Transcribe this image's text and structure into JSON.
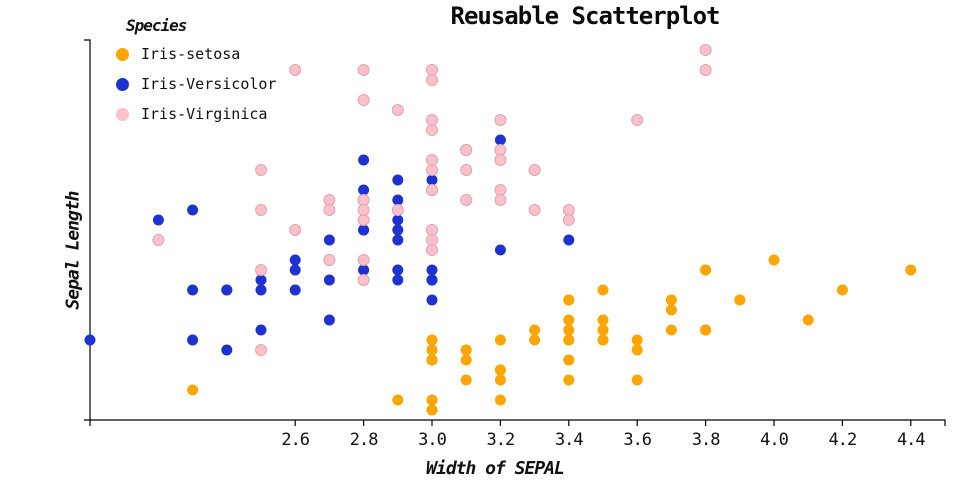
{
  "title": "Reusable Scatterplot",
  "legend": {
    "title": "Species",
    "items": [
      {
        "label": "Iris-setosa",
        "color": "#FFA500"
      },
      {
        "label": "Iris-Versicolor",
        "color": "#1E32D2"
      },
      {
        "label": "Iris-Virginica",
        "color": "#FFC0CB"
      }
    ]
  },
  "chart_data": {
    "type": "scatter",
    "title": "Reusable Scatterplot",
    "xlabel": "Width of SEPAL",
    "ylabel": "Sepal Length",
    "xlim": [
      2.0,
      4.5
    ],
    "ylim": [
      4.2,
      8.0
    ],
    "x_ticks": [
      2.6,
      2.8,
      3.0,
      3.2,
      3.4,
      3.6,
      3.8,
      4.0,
      4.2,
      4.4
    ],
    "grid": false,
    "legend_position": "top-left",
    "point_radius": 5.5,
    "axis_color": "#000000",
    "series": [
      {
        "name": "Iris-setosa",
        "color": "#FFA500",
        "stroke": "none",
        "points": [
          [
            3.5,
            5.1
          ],
          [
            3.0,
            4.9
          ],
          [
            3.2,
            4.7
          ],
          [
            3.1,
            4.6
          ],
          [
            3.6,
            5.0
          ],
          [
            3.9,
            5.4
          ],
          [
            3.4,
            4.6
          ],
          [
            3.4,
            5.0
          ],
          [
            2.9,
            4.4
          ],
          [
            3.1,
            4.9
          ],
          [
            3.7,
            5.4
          ],
          [
            3.4,
            4.8
          ],
          [
            3.0,
            4.8
          ],
          [
            3.0,
            4.3
          ],
          [
            4.0,
            5.8
          ],
          [
            4.4,
            5.7
          ],
          [
            3.9,
            5.4
          ],
          [
            3.5,
            5.1
          ],
          [
            3.8,
            5.7
          ],
          [
            3.8,
            5.1
          ],
          [
            3.4,
            5.4
          ],
          [
            3.7,
            5.1
          ],
          [
            3.6,
            4.6
          ],
          [
            3.3,
            5.1
          ],
          [
            3.4,
            4.8
          ],
          [
            3.0,
            5.0
          ],
          [
            3.4,
            5.0
          ],
          [
            3.5,
            5.2
          ],
          [
            3.4,
            5.2
          ],
          [
            3.2,
            4.7
          ],
          [
            3.1,
            4.8
          ],
          [
            3.4,
            5.4
          ],
          [
            4.1,
            5.2
          ],
          [
            4.2,
            5.5
          ],
          [
            3.1,
            4.9
          ],
          [
            3.2,
            5.0
          ],
          [
            3.5,
            5.5
          ],
          [
            3.6,
            4.9
          ],
          [
            3.0,
            4.4
          ],
          [
            3.4,
            5.1
          ],
          [
            3.5,
            5.0
          ],
          [
            2.3,
            4.5
          ],
          [
            3.2,
            4.4
          ],
          [
            3.5,
            5.0
          ],
          [
            3.8,
            5.1
          ],
          [
            3.0,
            4.8
          ],
          [
            3.8,
            5.1
          ],
          [
            3.2,
            4.6
          ],
          [
            3.7,
            5.3
          ],
          [
            3.3,
            5.0
          ]
        ]
      },
      {
        "name": "Iris-Versicolor",
        "color": "#1E32D2",
        "stroke": "none",
        "points": [
          [
            3.2,
            7.0
          ],
          [
            3.2,
            6.4
          ],
          [
            3.1,
            6.9
          ],
          [
            2.3,
            5.5
          ],
          [
            2.8,
            6.5
          ],
          [
            2.8,
            5.7
          ],
          [
            3.3,
            6.3
          ],
          [
            2.4,
            4.9
          ],
          [
            2.9,
            6.6
          ],
          [
            2.7,
            5.2
          ],
          [
            2.0,
            5.0
          ],
          [
            3.0,
            5.9
          ],
          [
            2.2,
            6.0
          ],
          [
            2.9,
            6.1
          ],
          [
            2.9,
            5.6
          ],
          [
            3.1,
            6.7
          ],
          [
            3.0,
            5.6
          ],
          [
            2.7,
            5.8
          ],
          [
            2.2,
            6.2
          ],
          [
            2.5,
            5.6
          ],
          [
            3.2,
            5.9
          ],
          [
            2.8,
            6.1
          ],
          [
            2.5,
            6.3
          ],
          [
            2.8,
            6.1
          ],
          [
            2.9,
            6.4
          ],
          [
            3.0,
            6.6
          ],
          [
            2.8,
            6.8
          ],
          [
            3.0,
            6.7
          ],
          [
            2.9,
            6.0
          ],
          [
            2.6,
            5.7
          ],
          [
            2.4,
            5.5
          ],
          [
            2.4,
            5.5
          ],
          [
            2.7,
            5.8
          ],
          [
            2.7,
            6.0
          ],
          [
            3.0,
            5.4
          ],
          [
            3.4,
            6.0
          ],
          [
            3.1,
            6.7
          ],
          [
            2.3,
            6.3
          ],
          [
            3.0,
            5.6
          ],
          [
            2.5,
            5.5
          ],
          [
            2.6,
            5.5
          ],
          [
            3.0,
            6.1
          ],
          [
            2.6,
            5.8
          ],
          [
            2.3,
            5.0
          ],
          [
            2.7,
            5.6
          ],
          [
            3.0,
            5.7
          ],
          [
            2.9,
            5.7
          ],
          [
            2.9,
            6.2
          ],
          [
            2.5,
            5.1
          ],
          [
            2.8,
            5.7
          ]
        ]
      },
      {
        "name": "Iris-Virginica",
        "color": "#FFC0CB",
        "stroke": "#d9a7b4",
        "points": [
          [
            3.3,
            6.3
          ],
          [
            2.7,
            5.8
          ],
          [
            3.0,
            7.1
          ],
          [
            2.9,
            6.3
          ],
          [
            3.0,
            6.5
          ],
          [
            3.0,
            7.6
          ],
          [
            2.5,
            4.9
          ],
          [
            2.9,
            7.3
          ],
          [
            2.5,
            6.7
          ],
          [
            3.6,
            7.2
          ],
          [
            3.2,
            6.5
          ],
          [
            2.7,
            6.4
          ],
          [
            3.0,
            6.8
          ],
          [
            2.5,
            5.7
          ],
          [
            2.8,
            5.8
          ],
          [
            3.2,
            6.4
          ],
          [
            3.0,
            6.5
          ],
          [
            3.8,
            7.7
          ],
          [
            2.6,
            7.7
          ],
          [
            2.2,
            6.0
          ],
          [
            3.2,
            6.9
          ],
          [
            2.8,
            5.6
          ],
          [
            2.8,
            7.7
          ],
          [
            2.7,
            6.3
          ],
          [
            3.3,
            6.7
          ],
          [
            3.2,
            7.2
          ],
          [
            2.8,
            6.2
          ],
          [
            3.0,
            6.1
          ],
          [
            2.8,
            6.4
          ],
          [
            3.0,
            7.2
          ],
          [
            2.8,
            7.4
          ],
          [
            3.8,
            7.9
          ],
          [
            2.8,
            6.4
          ],
          [
            2.8,
            6.3
          ],
          [
            2.6,
            6.1
          ],
          [
            3.0,
            7.7
          ],
          [
            3.4,
            6.3
          ],
          [
            3.1,
            6.4
          ],
          [
            3.0,
            6.0
          ],
          [
            3.1,
            6.9
          ],
          [
            3.1,
            6.7
          ],
          [
            3.1,
            6.9
          ],
          [
            2.7,
            5.8
          ],
          [
            3.2,
            6.8
          ],
          [
            3.3,
            6.7
          ],
          [
            3.0,
            6.7
          ],
          [
            2.5,
            6.3
          ],
          [
            3.0,
            6.5
          ],
          [
            3.4,
            6.2
          ],
          [
            3.0,
            5.9
          ]
        ]
      }
    ]
  }
}
